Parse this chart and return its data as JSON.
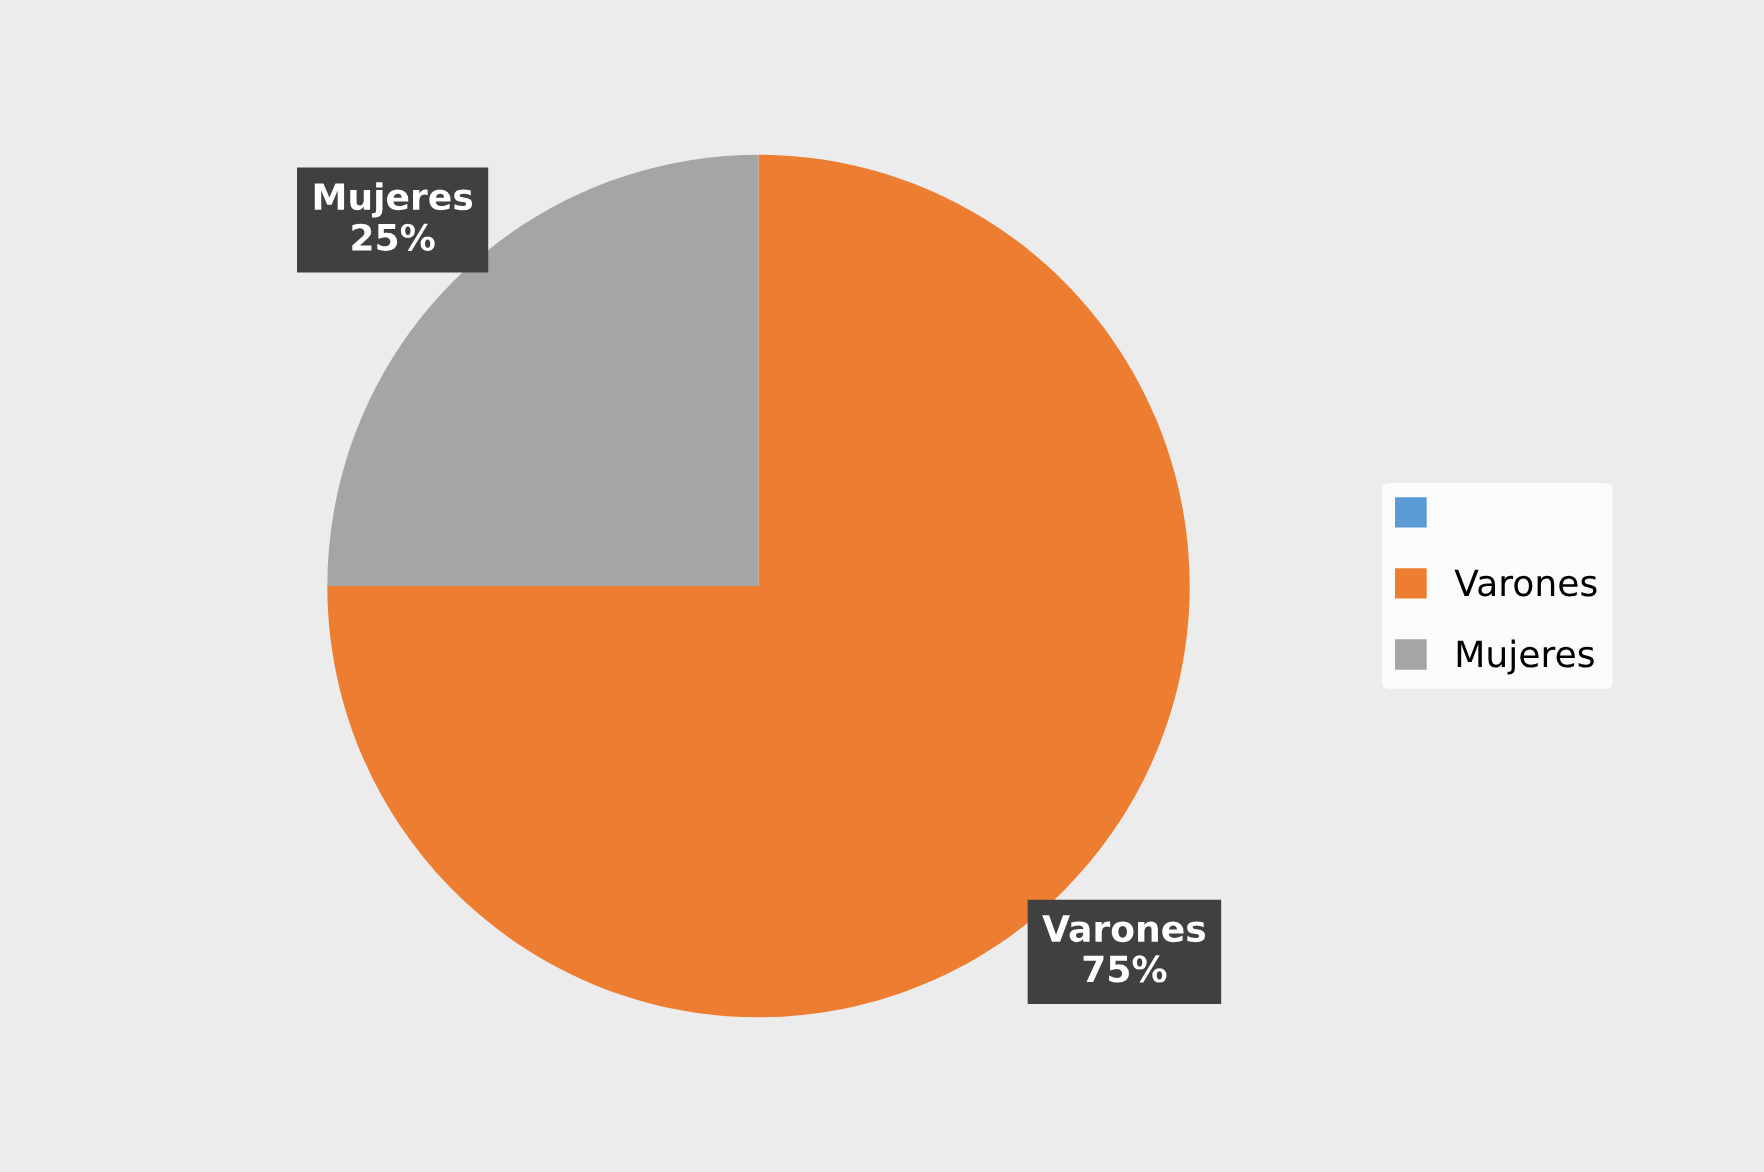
{
  "chart_data": {
    "type": "pie",
    "categories": [
      null,
      "Varones",
      "Mujeres"
    ],
    "values": [
      0,
      75,
      25
    ],
    "colors": [
      "#5b9bd5",
      "#ed7d31",
      "#a5a5a5"
    ],
    "value_labels": [
      null,
      "Varones\n75%",
      "Mujeres\n25%"
    ],
    "legend": "right"
  }
}
